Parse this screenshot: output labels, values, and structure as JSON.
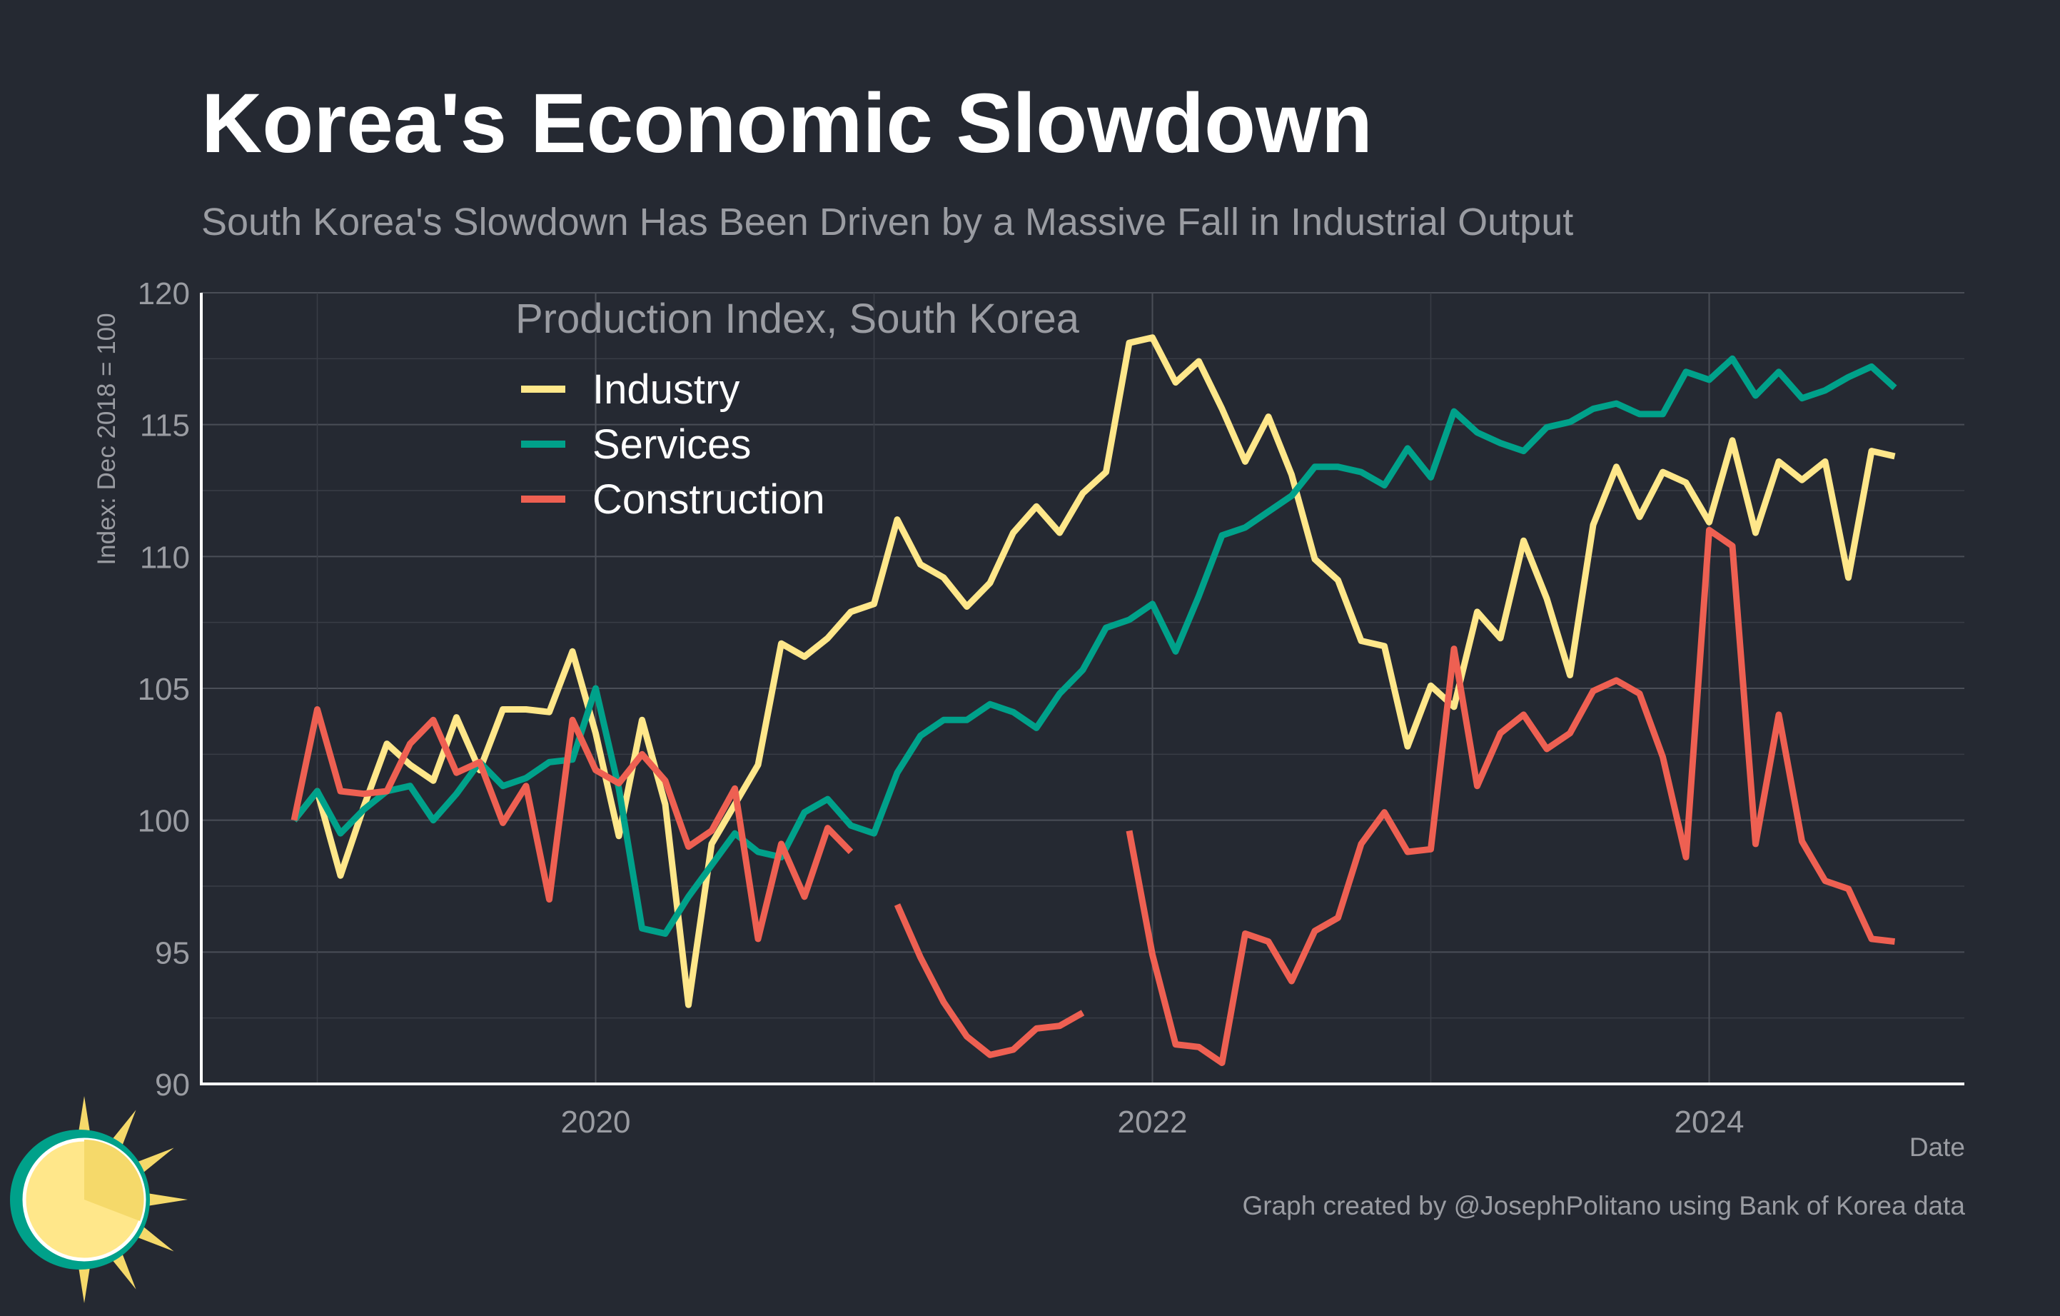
{
  "header": {
    "title": "Korea's Economic Slowdown",
    "subtitle": "South Korea's Slowdown Has Been Driven by a Massive Fall in Industrial Output"
  },
  "footer": {
    "caption": "Graph created by @JosephPolitano using Bank of Korea data"
  },
  "logo": {
    "icon": "sun-logo-icon"
  },
  "chart_data": {
    "type": "line",
    "xlabel": "Date",
    "ylabel": "Index: Dec 2018 = 100",
    "ylim": [
      90,
      120
    ],
    "yticks": [
      90,
      95,
      100,
      105,
      110,
      115,
      120
    ],
    "xlim": [
      "2018-08",
      "2024-12"
    ],
    "xticks": [
      {
        "label": "2020",
        "date": "2020-01"
      },
      {
        "label": "2022",
        "date": "2022-01"
      },
      {
        "label": "2024",
        "date": "2024-01"
      }
    ],
    "grid": true,
    "legend": {
      "title": "Production Index, South Korea",
      "placement": "top-left"
    },
    "x": [
      "2018-12",
      "2019-01",
      "2019-02",
      "2019-03",
      "2019-04",
      "2019-05",
      "2019-06",
      "2019-07",
      "2019-08",
      "2019-09",
      "2019-10",
      "2019-11",
      "2019-12",
      "2020-01",
      "2020-02",
      "2020-03",
      "2020-04",
      "2020-05",
      "2020-06",
      "2020-07",
      "2020-08",
      "2020-09",
      "2020-10",
      "2020-11",
      "2020-12",
      "2021-01",
      "2021-02",
      "2021-03",
      "2021-04",
      "2021-05",
      "2021-06",
      "2021-07",
      "2021-08",
      "2021-09",
      "2021-10",
      "2021-11",
      "2021-12",
      "2022-01",
      "2022-02",
      "2022-03",
      "2022-04",
      "2022-05",
      "2022-06",
      "2022-07",
      "2022-08",
      "2022-09",
      "2022-10",
      "2022-11",
      "2022-12",
      "2023-01",
      "2023-02",
      "2023-03",
      "2023-04",
      "2023-05",
      "2023-06",
      "2023-07",
      "2023-08",
      "2023-09",
      "2023-10",
      "2023-11",
      "2023-12",
      "2024-01",
      "2024-02",
      "2024-03",
      "2024-04",
      "2024-05",
      "2024-06",
      "2024-07",
      "2024-08",
      "2024-09"
    ],
    "series": [
      {
        "name": "Industry",
        "color": "#ffe78a",
        "values": [
          100.0,
          101.1,
          97.9,
          100.5,
          102.9,
          102.1,
          101.5,
          103.9,
          101.9,
          104.2,
          104.2,
          104.1,
          106.4,
          103.3,
          99.4,
          103.8,
          100.6,
          93.0,
          99.1,
          100.6,
          102.1,
          106.7,
          106.2,
          106.9,
          107.9,
          108.2,
          111.4,
          109.7,
          109.2,
          108.1,
          109.0,
          110.9,
          111.9,
          110.9,
          112.4,
          113.2,
          118.1,
          118.3,
          116.6,
          117.4,
          115.6,
          113.6,
          115.3,
          113.1,
          109.9,
          109.1,
          106.8,
          106.6,
          102.8,
          105.1,
          104.3,
          107.9,
          106.9,
          110.6,
          108.4,
          105.5,
          111.2,
          113.4,
          111.5,
          113.2,
          112.8,
          111.3,
          114.4,
          110.9,
          113.6,
          112.9,
          113.6,
          109.2,
          114.0,
          113.8
        ]
      },
      {
        "name": "Services",
        "color": "#00a18a",
        "values": [
          100.0,
          101.1,
          99.5,
          100.4,
          101.1,
          101.3,
          100.0,
          101.0,
          102.2,
          101.3,
          101.6,
          102.2,
          102.3,
          105.0,
          101.2,
          95.9,
          95.7,
          97.1,
          98.3,
          99.5,
          98.8,
          98.6,
          100.3,
          100.8,
          99.8,
          99.5,
          101.8,
          103.2,
          103.8,
          103.8,
          104.4,
          104.1,
          103.5,
          104.8,
          105.7,
          107.3,
          107.6,
          108.2,
          106.4,
          108.5,
          110.8,
          111.1,
          111.7,
          112.3,
          113.4,
          113.4,
          113.2,
          112.7,
          114.1,
          113.0,
          115.5,
          114.7,
          114.3,
          114.0,
          114.9,
          115.1,
          115.6,
          115.8,
          115.4,
          115.4,
          117.0,
          116.7,
          117.5,
          116.1,
          117.0,
          116.0,
          116.3,
          116.8,
          117.2,
          116.4
        ]
      },
      {
        "name": "Construction",
        "color": "#ee6052",
        "values": [
          100.0,
          104.2,
          101.1,
          101.0,
          101.1,
          102.9,
          103.8,
          101.8,
          102.2,
          99.9,
          101.3,
          97.0,
          103.8,
          101.9,
          101.4,
          102.5,
          101.5,
          99.0,
          99.6,
          101.2,
          95.5,
          99.1,
          97.1,
          99.7,
          98.8,
          null,
          96.8,
          94.8,
          93.1,
          91.8,
          91.1,
          91.3,
          92.1,
          92.2,
          92.7,
          null,
          99.6,
          94.9,
          91.5,
          91.4,
          90.8,
          95.7,
          95.4,
          93.9,
          95.8,
          96.3,
          99.1,
          100.3,
          98.8,
          98.9,
          106.5,
          101.3,
          103.3,
          104.0,
          102.7,
          103.3,
          104.9,
          105.3,
          104.8,
          102.4,
          98.6,
          111.0,
          110.4,
          99.1,
          104.0,
          99.2,
          97.7,
          97.4,
          95.5,
          95.4
        ]
      }
    ]
  }
}
